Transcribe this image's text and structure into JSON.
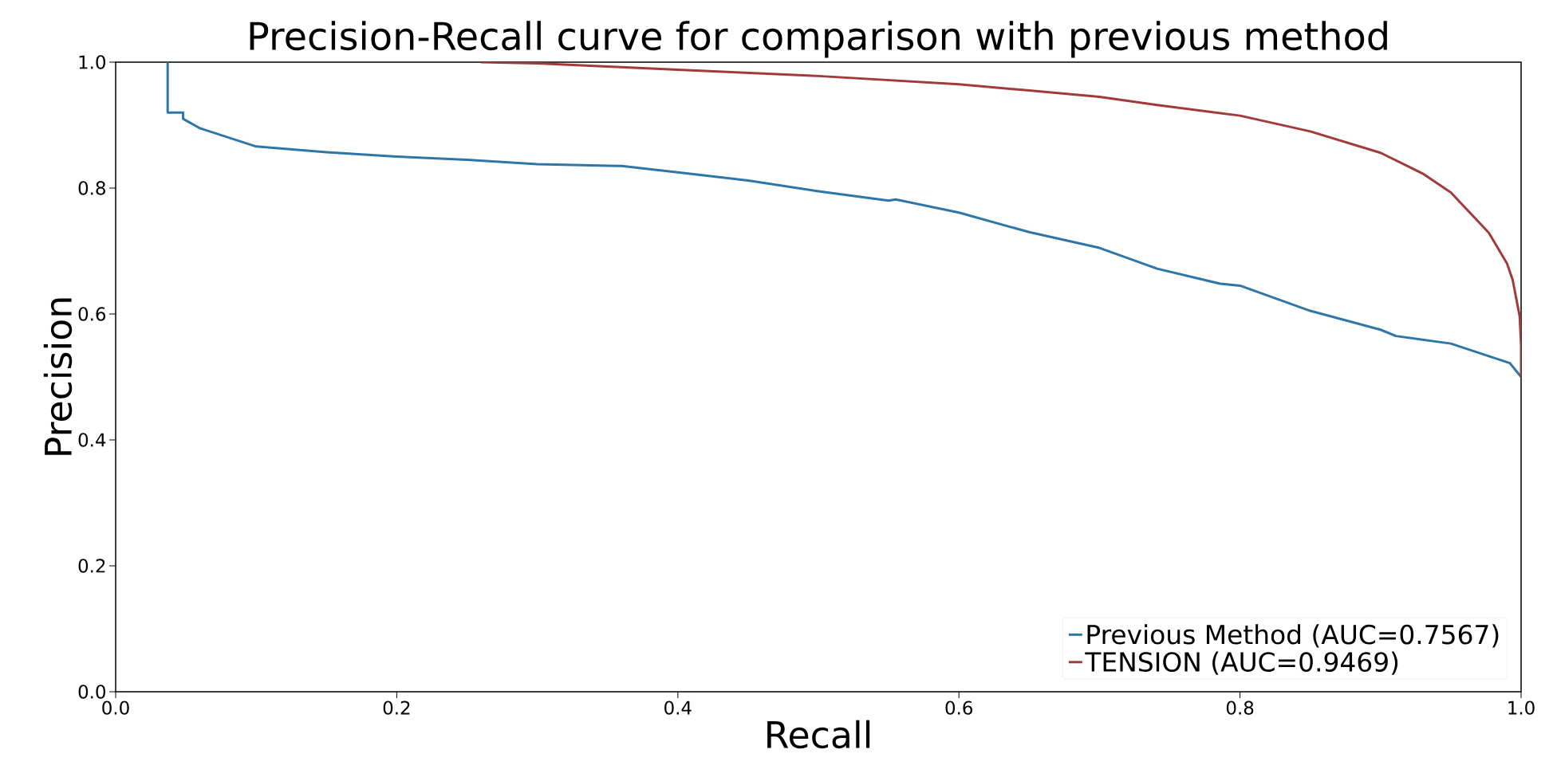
{
  "chart_data": {
    "type": "line",
    "title": "Precision-Recall curve for comparison with previous method",
    "xlabel": "Recall",
    "ylabel": "Precision",
    "xlim": [
      0,
      1
    ],
    "ylim": [
      0,
      1
    ],
    "xticks": [
      {
        "value": 0,
        "label": "0.0"
      },
      0.2,
      0.4,
      0.6,
      0.8,
      {
        "value": 1,
        "label": "1.0"
      }
    ],
    "yticks": [
      {
        "value": 0,
        "label": "0.0"
      },
      0.2,
      0.4,
      0.6,
      0.8,
      {
        "value": 1,
        "label": "1.0"
      }
    ],
    "grid": false,
    "legend": "bottom right",
    "marker": "none",
    "line_style": "solid",
    "series": [
      {
        "name": "Previous Method (AUC=0.7567)",
        "color": "#2f76a8",
        "x": [
          0.037,
          0.037,
          0.048,
          0.048,
          0.06,
          0.1,
          0.15,
          0.2,
          0.25,
          0.3,
          0.36,
          0.4,
          0.45,
          0.5,
          0.55,
          0.555,
          0.6,
          0.65,
          0.7,
          0.741,
          0.786,
          0.8,
          0.85,
          0.9,
          0.911,
          0.95,
          0.992,
          1.0
        ],
        "values": [
          1.0,
          0.92,
          0.92,
          0.91,
          0.895,
          0.866,
          0.857,
          0.85,
          0.845,
          0.838,
          0.835,
          0.825,
          0.812,
          0.795,
          0.78,
          0.782,
          0.761,
          0.73,
          0.705,
          0.672,
          0.648,
          0.645,
          0.605,
          0.575,
          0.565,
          0.553,
          0.522,
          0.5
        ]
      },
      {
        "name": "TENSION (AUC=0.9469)",
        "color": "#a33a3a",
        "x": [
          0.26,
          0.3,
          0.35,
          0.4,
          0.5,
          0.6,
          0.65,
          0.7,
          0.741,
          0.8,
          0.85,
          0.9,
          0.93,
          0.95,
          0.977,
          0.99,
          0.994,
          0.999,
          1.0,
          1.0
        ],
        "values": [
          1.0,
          0.998,
          0.993,
          0.988,
          0.978,
          0.965,
          0.955,
          0.945,
          0.932,
          0.915,
          0.89,
          0.856,
          0.823,
          0.793,
          0.729,
          0.68,
          0.654,
          0.596,
          0.55,
          0.5
        ]
      }
    ]
  }
}
